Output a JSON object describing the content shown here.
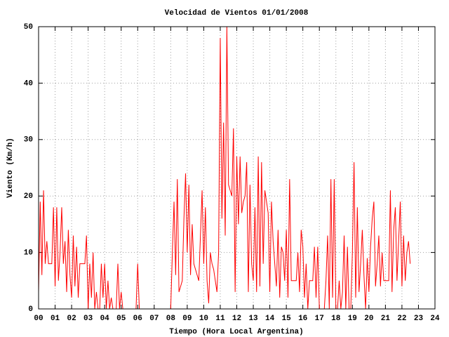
{
  "chart_data": {
    "type": "line",
    "title": "Velocidad de Vientos 01/01/2008",
    "xlabel": "Tiempo (Hora Local Argentina)",
    "ylabel": "Viento (Km/h)",
    "color": "#ff0000",
    "grid": true,
    "xlim": [
      0,
      24
    ],
    "ylim": [
      0,
      50
    ],
    "yticks": [
      0,
      10,
      20,
      30,
      40,
      50
    ],
    "xticks": [
      {
        "value": 0,
        "label": "00"
      },
      {
        "value": 1,
        "label": "01"
      },
      {
        "value": 2,
        "label": "02"
      },
      {
        "value": 3,
        "label": "03"
      },
      {
        "value": 4,
        "label": "04"
      },
      {
        "value": 5,
        "label": "05"
      },
      {
        "value": 6,
        "label": "06"
      },
      {
        "value": 7,
        "label": "07"
      },
      {
        "value": 8,
        "label": "08"
      },
      {
        "value": 9,
        "label": "09"
      },
      10,
      11,
      12,
      13,
      14,
      15,
      16,
      17,
      18,
      19,
      20,
      21,
      22,
      23,
      24
    ],
    "x": [
      0.0,
      0.1,
      0.2,
      0.3,
      0.4,
      0.5,
      0.6,
      0.7,
      0.8,
      0.9,
      1.0,
      1.1,
      1.2,
      1.3,
      1.4,
      1.5,
      1.6,
      1.7,
      1.8,
      1.9,
      2.0,
      2.1,
      2.2,
      2.3,
      2.4,
      2.5,
      2.6,
      2.7,
      2.8,
      2.9,
      3.0,
      3.1,
      3.2,
      3.3,
      3.4,
      3.5,
      3.6,
      3.7,
      3.8,
      3.9,
      4.0,
      4.1,
      4.2,
      4.3,
      4.4,
      4.5,
      4.6,
      4.7,
      4.8,
      4.9,
      5.0,
      5.1,
      5.2,
      5.3,
      5.4,
      5.5,
      5.6,
      5.7,
      5.8,
      5.9,
      6.0,
      6.1,
      6.2,
      8.0,
      8.1,
      8.2,
      8.3,
      8.4,
      8.5,
      8.6,
      8.7,
      8.8,
      8.9,
      9.0,
      9.1,
      9.2,
      9.3,
      9.4,
      9.5,
      9.6,
      9.7,
      9.8,
      9.9,
      10.0,
      10.1,
      10.2,
      10.3,
      10.4,
      10.5,
      10.6,
      10.7,
      10.8,
      10.9,
      11.0,
      11.1,
      11.2,
      11.3,
      11.4,
      11.5,
      11.6,
      11.7,
      11.8,
      11.9,
      12.0,
      12.1,
      12.2,
      12.3,
      12.4,
      12.5,
      12.6,
      12.7,
      12.8,
      12.9,
      13.0,
      13.1,
      13.2,
      13.3,
      13.4,
      13.5,
      13.6,
      13.7,
      13.8,
      13.9,
      14.0,
      14.1,
      14.2,
      14.3,
      14.4,
      14.5,
      14.6,
      14.7,
      14.8,
      14.9,
      15.0,
      15.1,
      15.2,
      15.3,
      15.4,
      15.5,
      15.6,
      15.7,
      15.8,
      15.9,
      16.0,
      16.1,
      16.2,
      16.3,
      16.4,
      16.5,
      16.6,
      16.7,
      16.8,
      16.9,
      17.0,
      17.1,
      17.2,
      17.3,
      17.4,
      17.5,
      17.6,
      17.7,
      17.8,
      17.9,
      18.0,
      18.1,
      18.2,
      18.3,
      18.4,
      18.5,
      18.6,
      18.7,
      18.8,
      18.9,
      19.0,
      19.1,
      19.2,
      19.3,
      19.4,
      19.5,
      19.6,
      19.7,
      19.8,
      19.9,
      20.0,
      20.1,
      20.2,
      20.3,
      20.4,
      20.5,
      20.6,
      20.7,
      20.8,
      20.9,
      21.0,
      21.1,
      21.2,
      21.3,
      21.4,
      21.5,
      21.6,
      21.7,
      21.8,
      21.9,
      22.0,
      22.1,
      22.2,
      22.3,
      22.4,
      22.5
    ],
    "values": [
      3,
      19,
      6,
      21,
      8,
      12,
      8,
      8,
      8,
      18,
      4,
      18,
      5,
      10,
      18,
      8,
      12,
      3,
      14,
      6,
      2,
      13,
      4,
      11,
      2,
      8,
      8,
      8,
      8,
      13,
      0,
      8,
      2,
      10,
      0,
      3,
      0,
      0,
      8,
      2,
      8,
      0,
      5,
      0,
      2,
      0,
      0,
      0,
      8,
      0,
      3,
      0,
      0,
      0,
      0,
      0,
      0,
      0,
      0,
      0,
      8,
      0,
      null,
      0,
      10,
      19,
      6,
      23,
      3,
      4,
      5,
      16,
      24,
      10,
      22,
      6,
      15,
      8,
      7,
      6,
      5,
      13,
      21,
      8,
      18,
      5,
      1,
      10,
      8,
      7,
      5,
      3,
      10,
      48,
      16,
      33,
      13,
      50,
      22,
      21,
      20,
      32,
      3,
      27,
      15,
      27,
      17,
      19,
      20,
      26,
      3,
      22,
      8,
      5,
      18,
      3,
      27,
      4,
      26,
      8,
      21,
      19,
      17,
      3,
      19,
      12,
      8,
      4,
      14,
      2,
      11,
      10,
      5,
      14,
      2,
      23,
      5,
      5,
      5,
      5,
      10,
      3,
      14,
      11,
      2,
      8,
      0,
      5,
      5,
      5,
      11,
      2,
      11,
      0,
      0,
      0,
      0,
      5,
      13,
      0,
      23,
      2,
      23,
      0,
      0,
      5,
      0,
      3,
      13,
      0,
      11,
      0,
      0,
      10,
      26,
      2,
      18,
      3,
      8,
      14,
      6,
      0,
      9,
      3,
      11,
      16,
      19,
      4,
      8,
      13,
      4,
      10,
      5,
      5,
      5,
      5,
      21,
      3,
      14,
      18,
      5,
      12,
      19,
      4,
      13,
      5,
      10,
      12,
      8
    ]
  }
}
